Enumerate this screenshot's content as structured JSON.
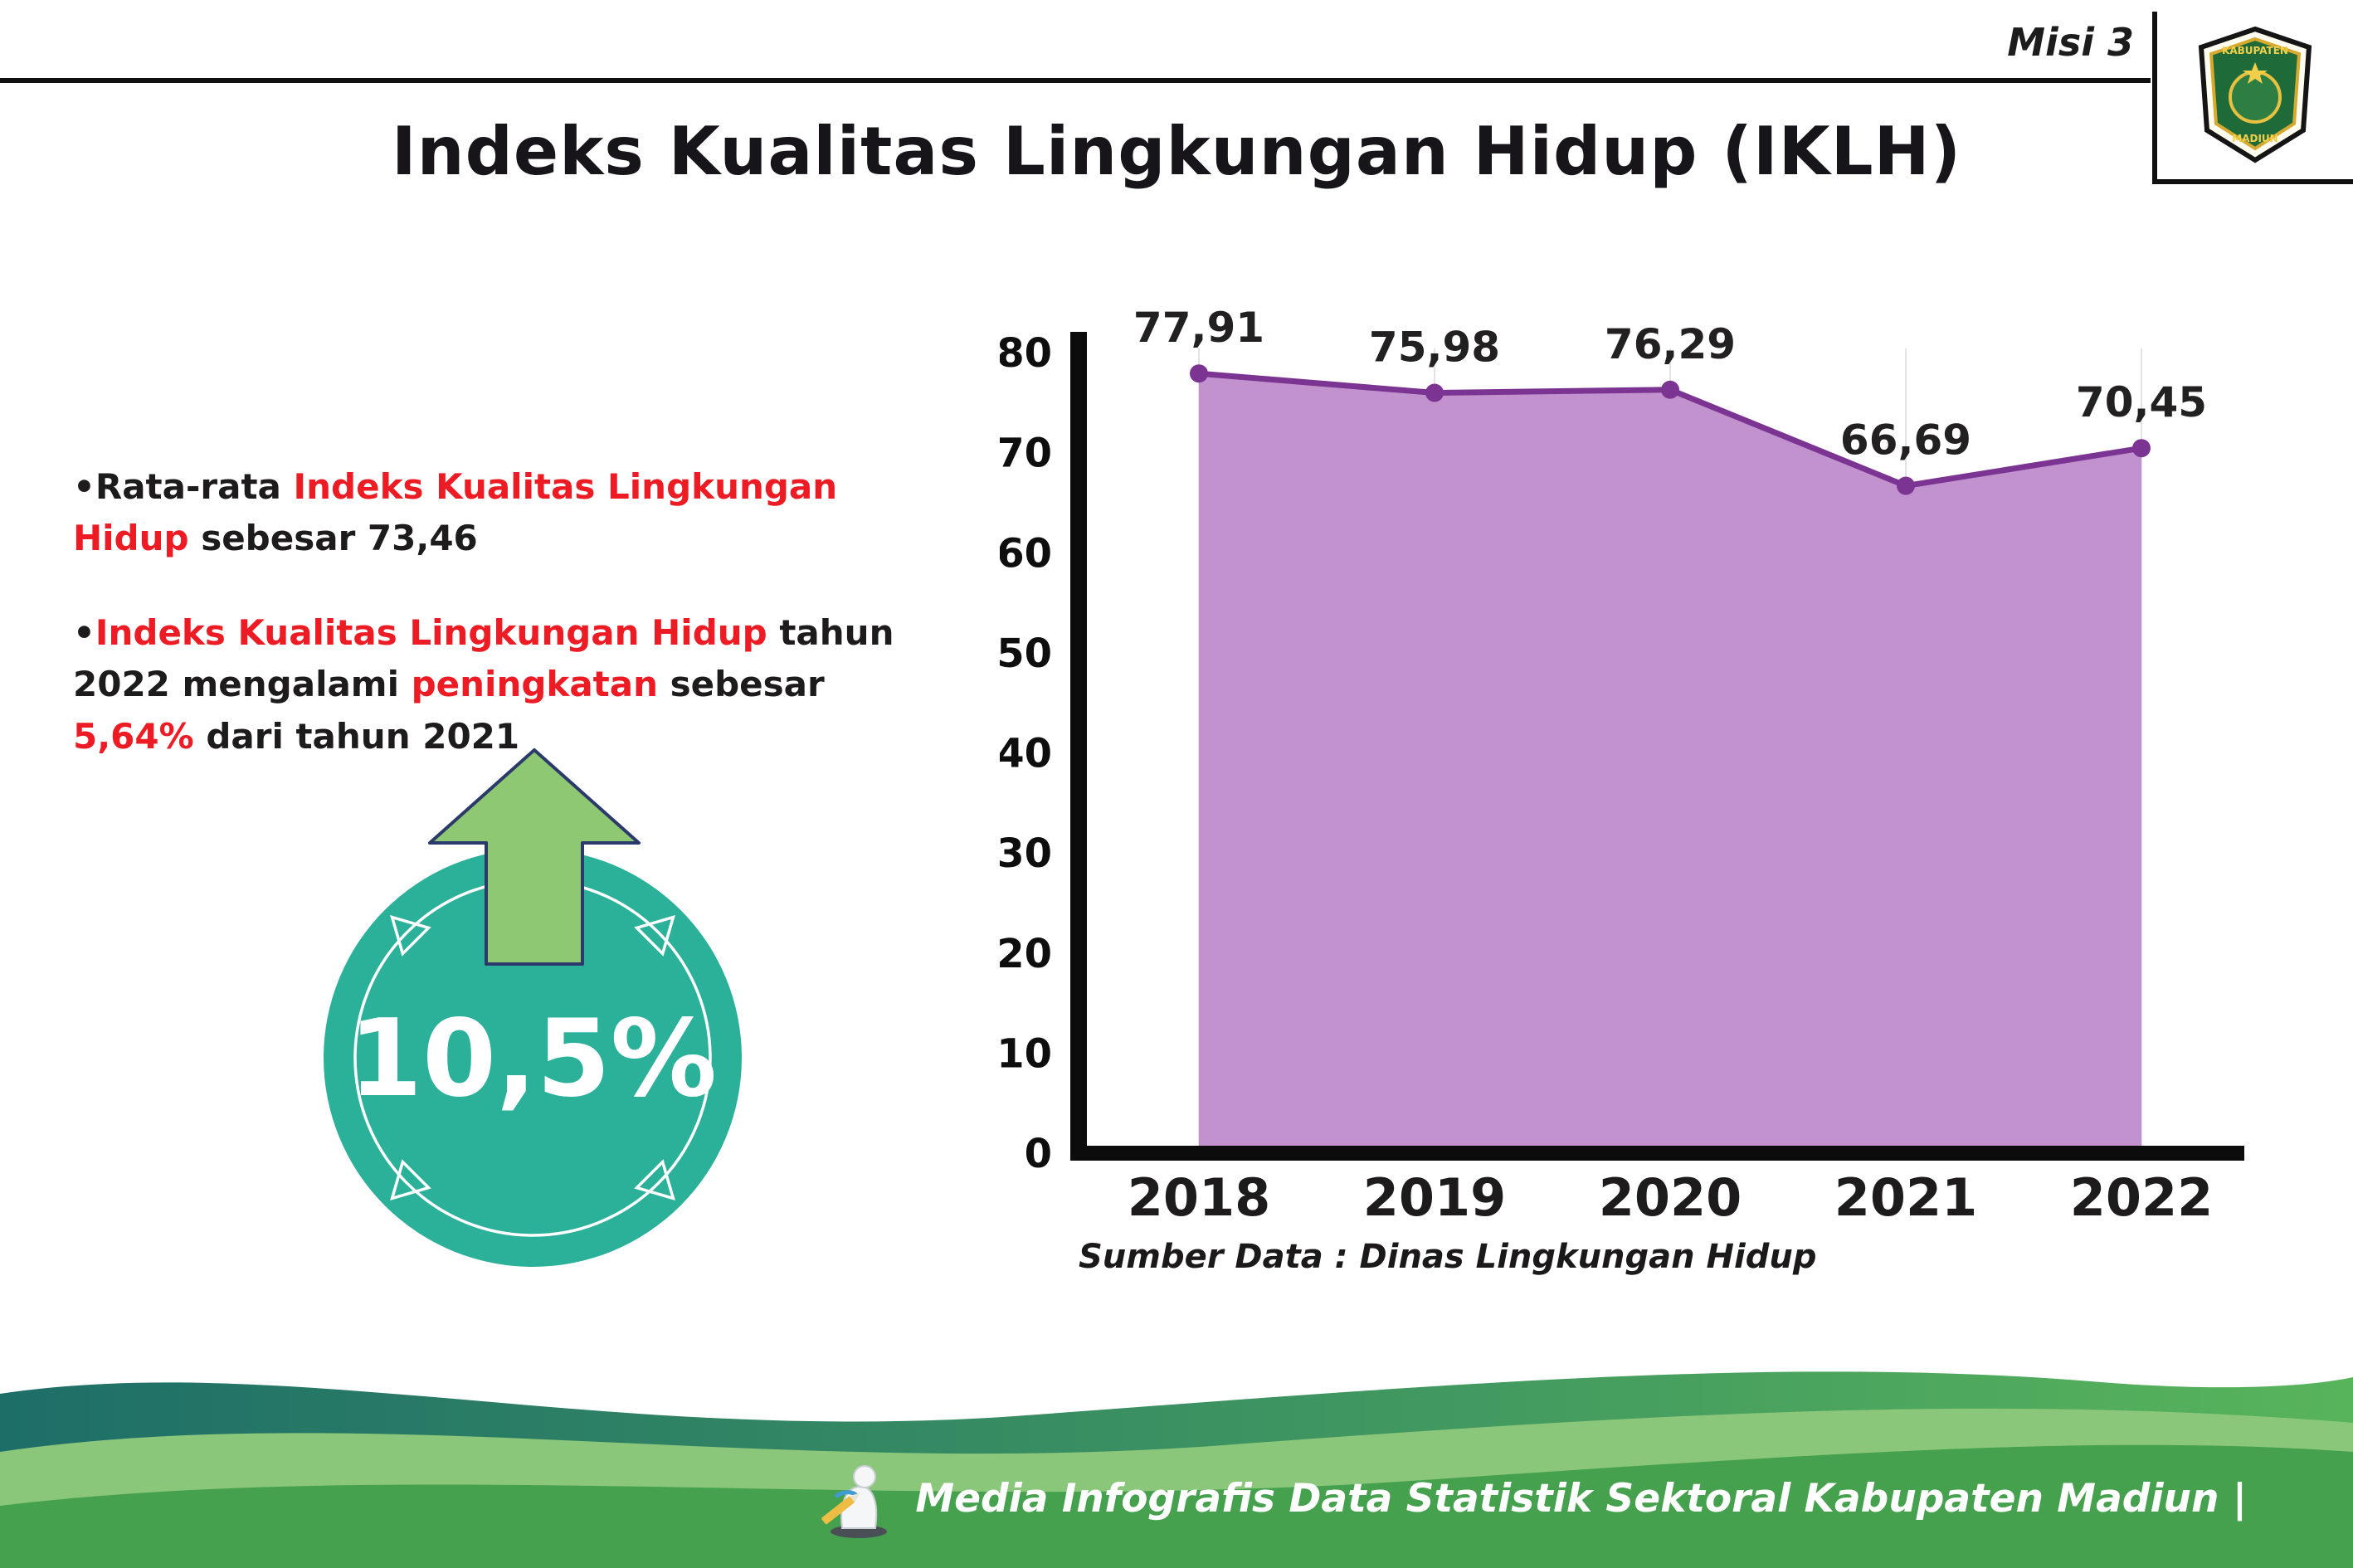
{
  "header": {
    "misi": "Misi 3",
    "title": "Indeks Kualitas Lingkungan Hidup (IKLH)"
  },
  "logo": {
    "top_text": "KABUPATEN",
    "bottom_text": "MADIUN"
  },
  "bullets": {
    "marker": "•",
    "b1": {
      "pre": "Rata-rata ",
      "red": "Indeks Kualitas Lingkungan Hidup",
      "post": " sebesar 73,46"
    },
    "b2": {
      "red1": "Indeks Kualitas Lingkungan Hidup",
      "t1": " tahun 2022 mengalami ",
      "red2": "peningkatan",
      "t2": " sebesar ",
      "red3": "5,64%",
      "t3": " dari tahun 2021"
    }
  },
  "badge": {
    "value": "10,5%"
  },
  "chart_data": {
    "type": "area",
    "title": "Indeks Kualitas Lingkungan Hidup (IKLH)",
    "categories": [
      "2018",
      "2019",
      "2020",
      "2021",
      "2022"
    ],
    "values": [
      77.91,
      75.98,
      76.29,
      66.69,
      70.45
    ],
    "value_labels": [
      "77,91",
      "75,98",
      "76,29",
      "66,69",
      "70,45"
    ],
    "ylim": [
      0,
      80
    ],
    "yticks": [
      0,
      10,
      20,
      30,
      40,
      50,
      60,
      70,
      80
    ],
    "grid": "vertical-light",
    "legend": "none",
    "source": "Sumber Data : Dinas Lingkungan Hidup",
    "colors": {
      "area": "#c292ce",
      "line": "#7c3493",
      "point": "#7c3493",
      "axis": "#0c0c0c",
      "grid": "#e4e2e6",
      "label": "#232021"
    }
  },
  "footer": {
    "credit": "Media Infografis Data Statistik Sektoral Kabupaten Madiun |"
  },
  "colors": {
    "accent_red": "#ed1c24",
    "badge_teal": "#2bb19a",
    "arrow_green": "#8fc873"
  }
}
